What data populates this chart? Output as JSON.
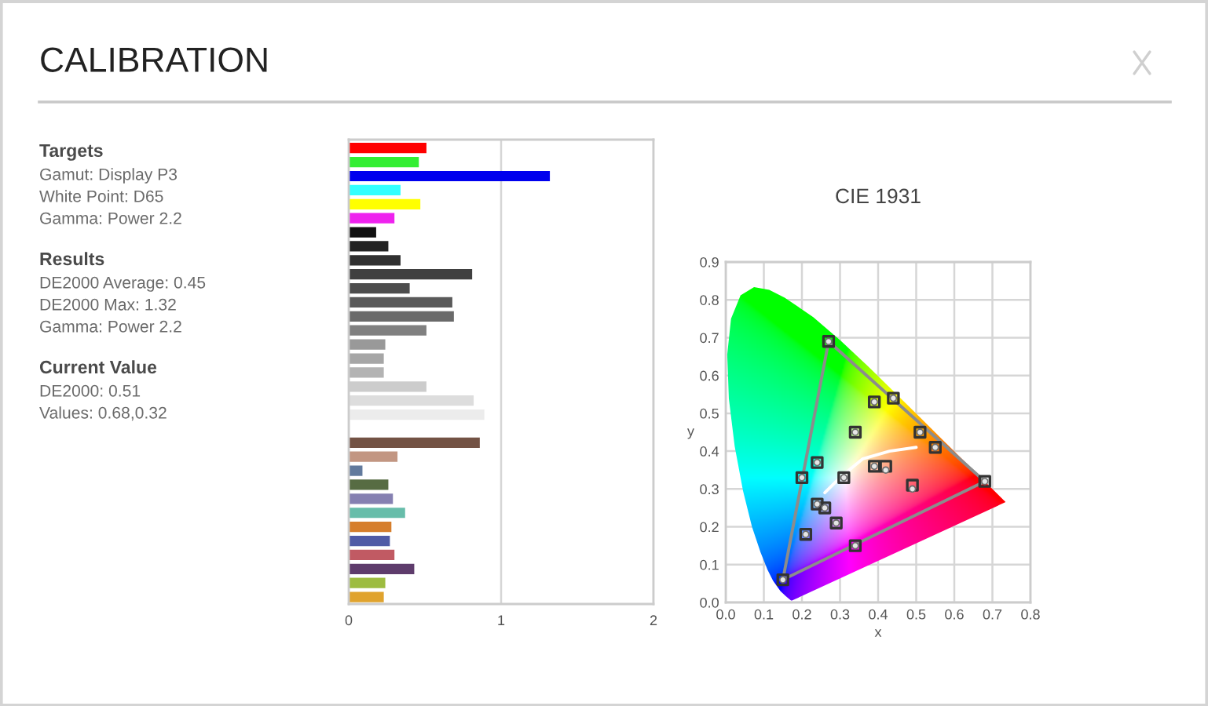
{
  "chart_data": [
    {
      "type": "other",
      "title": "CALIBRATION"
    },
    {
      "type": "other",
      "title": "Targets",
      "annotations": [
        "Gamut: Display P3",
        "White Point: D65",
        "Gamma: Power 2.2"
      ]
    },
    {
      "type": "other",
      "title": "Results",
      "annotations": [
        "DE2000 Average: 0.45",
        "DE2000 Max: 1.32",
        "Gamma: Power 2.2"
      ]
    },
    {
      "type": "other",
      "title": "Current Value",
      "annotations": [
        "DE2000: 0.51",
        "Values: 0.68,0.32"
      ]
    },
    {
      "type": "bar",
      "orientation": "horizontal",
      "tick_labels": "x",
      "grid": "x",
      "categories": [
        null,
        null,
        null,
        null,
        null,
        null,
        null,
        null,
        null,
        null,
        null,
        null,
        null,
        null,
        null,
        null,
        null,
        null,
        null,
        null,
        null,
        null,
        null,
        null,
        null,
        null,
        null,
        null,
        null,
        null,
        null,
        null,
        null
      ],
      "values": [
        0.51,
        0.46,
        1.32,
        0.34,
        0.47,
        0.3,
        0.18,
        0.26,
        0.34,
        0.81,
        0.4,
        0.68,
        0.69,
        0.51,
        0.24,
        0.23,
        0.23,
        0.51,
        0.82,
        0.89,
        null,
        0.86,
        0.32,
        0.09,
        0.26,
        0.29,
        0.37,
        0.28,
        0.27,
        0.3,
        0.43,
        0.24,
        0.23
      ],
      "colors": [
        "#ff0000",
        "#33ee33",
        "#0000ee",
        "#33ffff",
        "#ffff00",
        "#ee22ee",
        "#111111",
        "#222222",
        "#303030",
        "#404040",
        "#4d4d4d",
        "#5a5a5a",
        "#6a6a6a",
        "#808080",
        "#999999",
        "#a6a6a6",
        "#b3b3b3",
        "#cccccc",
        "#dddddd",
        "#ececec",
        "#ffffff",
        "#735244",
        "#c29682",
        "#627a9d",
        "#576c43",
        "#8580b1",
        "#67bdaa",
        "#d67e2c",
        "#505ba6",
        "#c15a63",
        "#5e3c6c",
        "#9dbc40",
        "#e0a32e"
      ],
      "xlim": [
        0,
        2
      ],
      "xticks": [
        0,
        1,
        2
      ]
    },
    {
      "type": "scatter",
      "title": "CIE 1931",
      "xlabel": "x",
      "ylabel": "y",
      "grid": true,
      "xlim": [
        0,
        0.8
      ],
      "ylim": [
        0,
        0.9
      ],
      "xticks": [
        {
          "value": 0,
          "label": "0.0"
        },
        0.1,
        0.2,
        0.3,
        0.4,
        0.5,
        0.6,
        0.7,
        0.8
      ],
      "yticks": [
        {
          "value": 0,
          "label": "0.0"
        },
        0.1,
        0.2,
        0.3,
        0.4,
        0.5,
        0.6,
        0.7,
        0.8,
        0.9
      ],
      "series": [
        {
          "type": "line",
          "color": "#8c8c8c",
          "line_style": "solid",
          "x": [
            0.15,
            0.27,
            0.68
          ],
          "values": [
            0.06,
            0.69,
            0.32
          ]
        },
        {
          "type": "line",
          "color": "#8c8c8c",
          "line_style": "solid",
          "x": [
            0.15,
            0.68
          ],
          "values": [
            0.06,
            0.32
          ]
        },
        {
          "type": "line",
          "color": "#ffffff",
          "line_style": "solid",
          "x": [
            0.26,
            0.3,
            0.36,
            0.43,
            0.5
          ],
          "values": [
            0.29,
            0.33,
            0.38,
            0.4,
            0.41
          ]
        },
        {
          "type": "scatter",
          "marker": "square",
          "color": "#333333",
          "x": [
            0.27,
            0.68,
            0.15,
            0.39,
            0.44,
            0.34,
            0.51,
            0.55,
            0.24,
            0.2,
            0.31,
            0.39,
            0.42,
            0.49,
            0.24,
            0.26,
            0.29,
            0.21,
            0.34
          ],
          "values": [
            0.69,
            0.32,
            0.06,
            0.53,
            0.54,
            0.45,
            0.45,
            0.41,
            0.37,
            0.33,
            0.33,
            0.36,
            0.36,
            0.31,
            0.26,
            0.25,
            0.21,
            0.18,
            0.15
          ]
        },
        {
          "type": "scatter",
          "marker": "circle",
          "color": "#e6e6e6",
          "x": [
            0.27,
            0.68,
            0.15,
            0.39,
            0.44,
            0.34,
            0.51,
            0.55,
            0.24,
            0.2,
            0.31,
            0.39,
            0.42,
            0.49,
            0.24,
            0.26,
            0.29,
            0.21,
            0.34
          ],
          "values": [
            0.69,
            0.32,
            0.06,
            0.53,
            0.54,
            0.45,
            0.45,
            0.41,
            0.37,
            0.33,
            0.33,
            0.36,
            0.35,
            0.3,
            0.26,
            0.25,
            0.21,
            0.18,
            0.15
          ]
        }
      ]
    }
  ]
}
